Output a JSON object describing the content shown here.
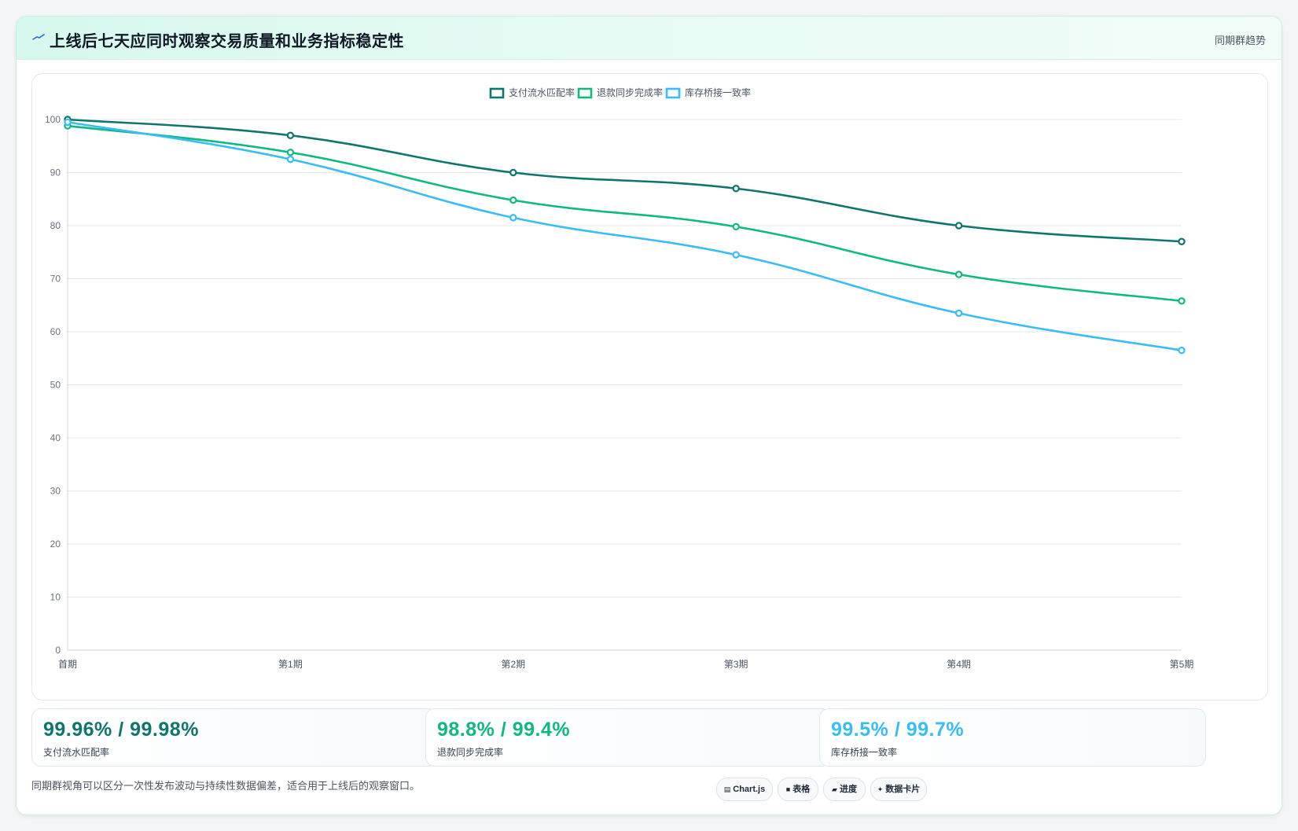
{
  "header": {
    "title": "上线后七天应同时观察交易质量和业务指标稳定性",
    "tag": "同期群趋势",
    "icon": "trend-line-icon"
  },
  "chart_data": {
    "type": "line",
    "categories": [
      "首期",
      "第1期",
      "第2期",
      "第3期",
      "第4期",
      "第5期"
    ],
    "ylim": [
      0,
      100
    ],
    "yticks": [
      0,
      10,
      20,
      30,
      40,
      50,
      60,
      70,
      80,
      90,
      100
    ],
    "grid": true,
    "legend_position": "top-center",
    "series": [
      {
        "name": "支付流水匹配率",
        "color": "#0f766e",
        "values": [
          100,
          97,
          90,
          87,
          80,
          77
        ]
      },
      {
        "name": "退款同步完成率",
        "color": "#10b981",
        "values": [
          98.8,
          93.8,
          84.8,
          79.8,
          70.8,
          65.8
        ]
      },
      {
        "name": "库存桥接一致率",
        "color": "#38bdf8",
        "values": [
          99.5,
          92.5,
          81.5,
          74.5,
          63.5,
          56.5
        ]
      }
    ]
  },
  "stats": [
    {
      "value": "99.96% / 99.98%",
      "label": "支付流水匹配率",
      "color": "#0f766e"
    },
    {
      "value": "98.8% / 99.4%",
      "label": "退款同步完成率",
      "color": "#10b981"
    },
    {
      "value": "99.5% / 99.7%",
      "label": "库存桥接一致率",
      "color": "#38bdf8"
    }
  ],
  "footer": {
    "note": "同期群视角可以区分一次性发布波动与持续性数据偏差，适合用于上线后的观察窗口。",
    "chips": [
      {
        "icon": "▤",
        "icon_name": "chart-icon",
        "label": "Chart.js"
      },
      {
        "icon": "■",
        "icon_name": "table-icon",
        "label": "表格"
      },
      {
        "icon": "▰",
        "icon_name": "progress-icon",
        "label": "进度"
      },
      {
        "icon": "✦",
        "icon_name": "sparkle-icon",
        "label": "数据卡片"
      }
    ]
  }
}
